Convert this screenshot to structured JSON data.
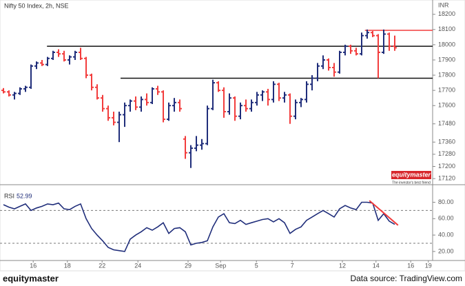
{
  "chart_data": [
    {
      "type": "ohlc",
      "title": "Nifty 50 Index, 2h, NSE",
      "unit": "INR",
      "watermark": {
        "brand": "equitymaster",
        "tagline": "The investor's best friend"
      },
      "up_color": "#1f2d7a",
      "down_color": "#f23c3c",
      "xlim": [
        -0.625,
        77.875
      ],
      "x": [
        0,
        1,
        2,
        3,
        4,
        5,
        6,
        7,
        8,
        9,
        10,
        11,
        12,
        13,
        14,
        15,
        16,
        17,
        18,
        19,
        20,
        21,
        22,
        23,
        24,
        25,
        26,
        27,
        28,
        29,
        30,
        31,
        32,
        33,
        34,
        35,
        36,
        37,
        38,
        39,
        40,
        41,
        42,
        43,
        44,
        45,
        46,
        47,
        48,
        49,
        50,
        51,
        52,
        53,
        54,
        55,
        56,
        57,
        58,
        59,
        60,
        61,
        62,
        63,
        64,
        65,
        66,
        67,
        68,
        69,
        70,
        71
      ],
      "open": [
        17700,
        17690,
        17670,
        17680,
        17710,
        17720,
        17860,
        17880,
        17870,
        17910,
        17950,
        17940,
        17900,
        17920,
        17950,
        17910,
        17800,
        17720,
        17650,
        17580,
        17520,
        17490,
        17540,
        17600,
        17630,
        17590,
        17640,
        17620,
        17710,
        17690,
        17510,
        17600,
        17620,
        17380,
        17290,
        17320,
        17340,
        17350,
        17580,
        17750,
        17700,
        17560,
        17650,
        17530,
        17600,
        17580,
        17620,
        17670,
        17690,
        17640,
        17740,
        17650,
        17670,
        17530,
        17620,
        17640,
        17740,
        17780,
        17860,
        17900,
        17850,
        17820,
        17950,
        17990,
        17960,
        17940,
        18060,
        18080,
        18060,
        17950,
        18070,
        17990
      ],
      "high": [
        17715,
        17700,
        17690,
        17720,
        17730,
        17870,
        17890,
        17900,
        17920,
        17960,
        17970,
        17960,
        17930,
        17960,
        17980,
        17920,
        17810,
        17740,
        17670,
        17600,
        17560,
        17560,
        17620,
        17640,
        17660,
        17660,
        17680,
        17720,
        17730,
        17700,
        17620,
        17650,
        17640,
        17400,
        17340,
        17400,
        17380,
        17600,
        17770,
        17760,
        17720,
        17680,
        17660,
        17620,
        17640,
        17640,
        17690,
        17700,
        17710,
        17760,
        17750,
        17690,
        17680,
        17640,
        17650,
        17760,
        17800,
        17880,
        17930,
        17910,
        17880,
        17960,
        18000,
        18000,
        17980,
        18080,
        18100,
        18090,
        18070,
        18100,
        18080,
        18060
      ],
      "low": [
        17680,
        17660,
        17640,
        17670,
        17690,
        17710,
        17840,
        17860,
        17860,
        17900,
        17920,
        17890,
        17870,
        17900,
        17900,
        17780,
        17700,
        17640,
        17560,
        17500,
        17470,
        17360,
        17460,
        17560,
        17570,
        17560,
        17600,
        17610,
        17670,
        17490,
        17500,
        17560,
        17560,
        17250,
        17190,
        17300,
        17310,
        17340,
        17570,
        17690,
        17520,
        17540,
        17500,
        17510,
        17560,
        17560,
        17600,
        17630,
        17600,
        17620,
        17630,
        17620,
        17480,
        17510,
        17590,
        17620,
        17700,
        17760,
        17840,
        17830,
        17790,
        17810,
        17930,
        17940,
        17930,
        17930,
        18040,
        18050,
        17780,
        17940,
        17960,
        17960
      ],
      "close": [
        17690,
        17670,
        17680,
        17710,
        17720,
        17860,
        17880,
        17870,
        17910,
        17950,
        17940,
        17900,
        17920,
        17950,
        17910,
        17800,
        17720,
        17650,
        17580,
        17520,
        17490,
        17540,
        17600,
        17630,
        17590,
        17640,
        17620,
        17710,
        17690,
        17510,
        17600,
        17620,
        17580,
        17290,
        17320,
        17340,
        17350,
        17580,
        17750,
        17700,
        17560,
        17650,
        17530,
        17600,
        17580,
        17620,
        17670,
        17690,
        17640,
        17740,
        17650,
        17670,
        17530,
        17620,
        17640,
        17740,
        17780,
        17860,
        17900,
        17850,
        17820,
        17950,
        17990,
        17960,
        17940,
        18060,
        18080,
        18060,
        17950,
        18070,
        17990,
        17980
      ],
      "ylim": [
        17080,
        18285
      ],
      "yticks": [
        18200,
        18100,
        18000,
        17900,
        17800,
        17700,
        17600,
        17480,
        17360,
        17280,
        17200,
        17120
      ],
      "levels": [
        {
          "value": 17990,
          "start": 7.9,
          "color": "#111111"
        },
        {
          "value": 17780,
          "start": 21.25,
          "color": "#111111"
        },
        {
          "value": 18095,
          "start": 65.6,
          "color": "#f23c3c"
        }
      ]
    },
    {
      "type": "line",
      "title": "RSI",
      "last": 52.99,
      "color": "#1f2d7a",
      "xlim": [
        -0.625,
        77.875
      ],
      "values": [
        77,
        74,
        72,
        75,
        78,
        70,
        73,
        75,
        78,
        77,
        79,
        72,
        71,
        75,
        78,
        60,
        48,
        40,
        33,
        25,
        22,
        21,
        20,
        35,
        40,
        44,
        49,
        46,
        50,
        55,
        42,
        48,
        49,
        44,
        28,
        30,
        31,
        33,
        50,
        62,
        66,
        55,
        54,
        58,
        53,
        55,
        57,
        59,
        60,
        56,
        60,
        55,
        42,
        47,
        50,
        58,
        62,
        66,
        70,
        66,
        62,
        72,
        76,
        73,
        71,
        80,
        80,
        79,
        58,
        66,
        57,
        53
      ],
      "ylim": [
        9,
        93
      ],
      "yticks": [
        {
          "value": 80,
          "label": "80.00"
        },
        {
          "value": 60,
          "label": "60.00"
        },
        {
          "value": 40,
          "label": "40.00"
        },
        {
          "value": 20,
          "label": "20.00"
        }
      ],
      "levels": [
        70,
        30
      ],
      "trendline": {
        "x": [
          66.4,
          71.6
        ],
        "y": [
          82,
          52
        ],
        "color": "#f23c3c"
      },
      "xticks": [
        {
          "value": 5.4,
          "label": "16"
        },
        {
          "value": 11.6,
          "label": "18"
        },
        {
          "value": 17.9,
          "label": "22"
        },
        {
          "value": 24.4,
          "label": "24"
        },
        {
          "value": 33.5,
          "label": "29"
        },
        {
          "value": 39.4,
          "label": "Sep"
        },
        {
          "value": 45.9,
          "label": "5"
        },
        {
          "value": 52.4,
          "label": "7"
        },
        {
          "value": 61.5,
          "label": "12"
        },
        {
          "value": 67.6,
          "label": "14"
        },
        {
          "value": 73.9,
          "label": "16"
        },
        {
          "value": 77.1,
          "label": "19"
        }
      ]
    }
  ],
  "footer": {
    "brand": "equitymaster",
    "source": "Data source: TradingView.com"
  }
}
